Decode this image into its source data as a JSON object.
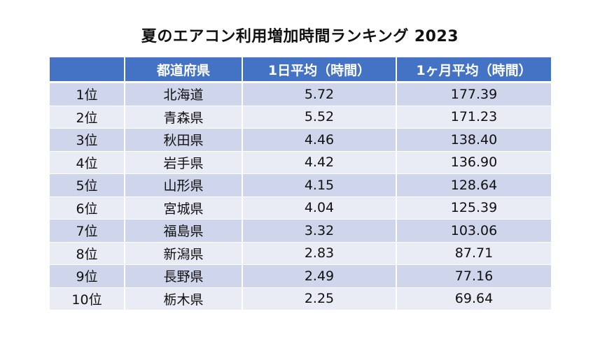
{
  "title": "夏のエアコン利用増加時間ランキング  2023",
  "table": {
    "headers": [
      "",
      "都道府県",
      "1日平均（時間）",
      "1ヶ月平均（時間）"
    ],
    "rows": [
      {
        "rank": "1位",
        "prefecture": "北海道",
        "daily": "5.72",
        "monthly": "177.39"
      },
      {
        "rank": "2位",
        "prefecture": "青森県",
        "daily": "5.52",
        "monthly": "171.23"
      },
      {
        "rank": "3位",
        "prefecture": "秋田県",
        "daily": "4.46",
        "monthly": "138.40"
      },
      {
        "rank": "4位",
        "prefecture": "岩手県",
        "daily": "4.42",
        "monthly": "136.90"
      },
      {
        "rank": "5位",
        "prefecture": "山形県",
        "daily": "4.15",
        "monthly": "128.64"
      },
      {
        "rank": "6位",
        "prefecture": "宮城県",
        "daily": "4.04",
        "monthly": "125.39"
      },
      {
        "rank": "7位",
        "prefecture": "福島県",
        "daily": "3.32",
        "monthly": "103.06"
      },
      {
        "rank": "8位",
        "prefecture": "新潟県",
        "daily": "2.83",
        "monthly": "87.71"
      },
      {
        "rank": "9位",
        "prefecture": "長野県",
        "daily": "2.49",
        "monthly": "77.16"
      },
      {
        "rank": "10位",
        "prefecture": "栃木県",
        "daily": "2.25",
        "monthly": "69.64"
      }
    ]
  },
  "colors": {
    "header_bg": "#4472c4",
    "row_band_dark": "#cfd5ea",
    "row_band_light": "#e9ebf5"
  }
}
